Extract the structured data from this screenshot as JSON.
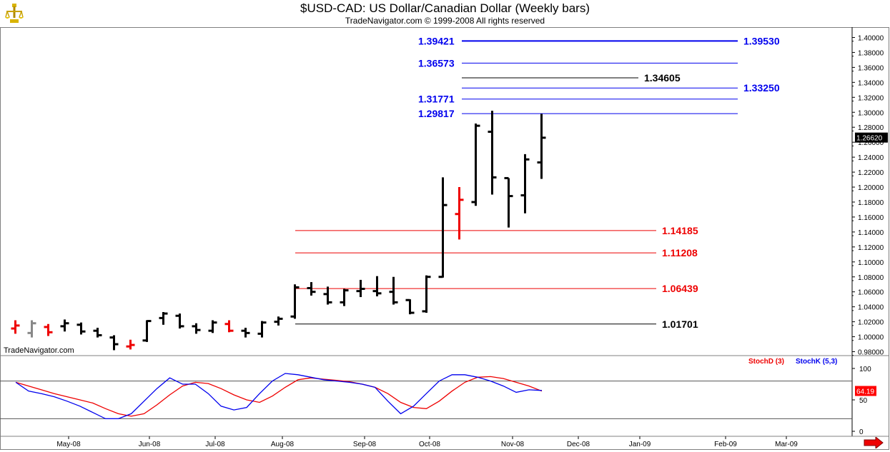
{
  "header": {
    "title": "$USD-CAD:  US Dollar/Canadian Dollar  (Weekly bars)",
    "subtitle": "TradeNavigator.com © 1999-2008 All rights reserved",
    "watermark": "TradeNavigator.com"
  },
  "icons": {
    "logo": "trophy-icon",
    "scroll": "arrow-right-icon"
  },
  "colors": {
    "up": "#000000",
    "down": "#ff0000",
    "blue": "#0000ee",
    "red": "#ee0000",
    "stochD": "#ff0000",
    "stochK": "#0000ff"
  },
  "chart_data": [
    {
      "type": "ohlc",
      "title": "$USD-CAD:  US Dollar/Canadian Dollar  (Weekly bars)",
      "ylim": [
        0.97,
        1.41
      ],
      "y_ticks": [
        "1.40000",
        "1.38000",
        "1.36000",
        "1.34000",
        "1.32000",
        "1.30000",
        "1.28000",
        "1.26000",
        "1.24000",
        "1.22000",
        "1.20000",
        "1.18000",
        "1.16000",
        "1.14000",
        "1.12000",
        "1.10000",
        "1.08000",
        "1.06000",
        "1.04000",
        "1.02000",
        "1.00000",
        "0.98000"
      ],
      "x_labels": [
        "May-08",
        "Jun-08",
        "Jul-08",
        "Aug-08",
        "Sep-08",
        "Oct-08",
        "Nov-08",
        "Dec-08",
        "Jan-09",
        "Feb-09",
        "Mar-09"
      ],
      "last_price": "1.26620",
      "bars": [
        {
          "o": 1.011,
          "h": 1.022,
          "l": 1.004,
          "c": 1.015,
          "color": "red"
        },
        {
          "o": 1.005,
          "h": 1.022,
          "l": 0.999,
          "c": 1.018,
          "color": "gray"
        },
        {
          "o": 1.013,
          "h": 1.017,
          "l": 1.001,
          "c": 1.006,
          "color": "red"
        },
        {
          "o": 1.014,
          "h": 1.023,
          "l": 1.007,
          "c": 1.018,
          "color": "black"
        },
        {
          "o": 1.016,
          "h": 1.019,
          "l": 1.003,
          "c": 1.007,
          "color": "black"
        },
        {
          "o": 1.008,
          "h": 1.012,
          "l": 0.999,
          "c": 1.002,
          "color": "black"
        },
        {
          "o": 0.999,
          "h": 1.002,
          "l": 0.982,
          "c": 0.99,
          "color": "black"
        },
        {
          "o": 0.987,
          "h": 0.996,
          "l": 0.983,
          "c": 0.989,
          "color": "red"
        },
        {
          "o": 0.995,
          "h": 1.022,
          "l": 0.993,
          "c": 1.021,
          "color": "black"
        },
        {
          "o": 1.025,
          "h": 1.033,
          "l": 1.016,
          "c": 1.031,
          "color": "black"
        },
        {
          "o": 1.028,
          "h": 1.031,
          "l": 1.011,
          "c": 1.014,
          "color": "black"
        },
        {
          "o": 1.014,
          "h": 1.018,
          "l": 1.004,
          "c": 1.009,
          "color": "black"
        },
        {
          "o": 1.008,
          "h": 1.022,
          "l": 1.005,
          "c": 1.019,
          "color": "black"
        },
        {
          "o": 1.017,
          "h": 1.022,
          "l": 1.006,
          "c": 1.008,
          "color": "red"
        },
        {
          "o": 1.008,
          "h": 1.012,
          "l": 0.999,
          "c": 1.005,
          "color": "black"
        },
        {
          "o": 1.004,
          "h": 1.021,
          "l": 0.999,
          "c": 1.019,
          "color": "black"
        },
        {
          "o": 1.02,
          "h": 1.027,
          "l": 1.015,
          "c": 1.024,
          "color": "black"
        },
        {
          "o": 1.027,
          "h": 1.07,
          "l": 1.024,
          "c": 1.066,
          "color": "black"
        },
        {
          "o": 1.065,
          "h": 1.073,
          "l": 1.055,
          "c": 1.06,
          "color": "black"
        },
        {
          "o": 1.057,
          "h": 1.067,
          "l": 1.043,
          "c": 1.046,
          "color": "black"
        },
        {
          "o": 1.046,
          "h": 1.064,
          "l": 1.041,
          "c": 1.062,
          "color": "black"
        },
        {
          "o": 1.061,
          "h": 1.076,
          "l": 1.053,
          "c": 1.064,
          "color": "black"
        },
        {
          "o": 1.061,
          "h": 1.081,
          "l": 1.054,
          "c": 1.058,
          "color": "black"
        },
        {
          "o": 1.06,
          "h": 1.08,
          "l": 1.043,
          "c": 1.046,
          "color": "black"
        },
        {
          "o": 1.049,
          "h": 1.05,
          "l": 1.03,
          "c": 1.032,
          "color": "black"
        },
        {
          "o": 1.034,
          "h": 1.082,
          "l": 1.032,
          "c": 1.08,
          "color": "black"
        },
        {
          "o": 1.08,
          "h": 1.213,
          "l": 1.079,
          "c": 1.176,
          "color": "black"
        },
        {
          "o": 1.164,
          "h": 1.2,
          "l": 1.13,
          "c": 1.183,
          "color": "red"
        },
        {
          "o": 1.18,
          "h": 1.285,
          "l": 1.175,
          "c": 1.282,
          "color": "black"
        },
        {
          "o": 1.274,
          "h": 1.302,
          "l": 1.19,
          "c": 1.213,
          "color": "black"
        },
        {
          "o": 1.212,
          "h": 1.212,
          "l": 1.146,
          "c": 1.188,
          "color": "black"
        },
        {
          "o": 1.189,
          "h": 1.244,
          "l": 1.165,
          "c": 1.237,
          "color": "black"
        },
        {
          "o": 1.233,
          "h": 1.298,
          "l": 1.211,
          "c": 1.266,
          "color": "black"
        }
      ],
      "levels": [
        {
          "label": "1.39421",
          "right_label": "1.39530",
          "value": 1.3953,
          "color": "blue",
          "label_side": "both"
        },
        {
          "label": "1.36573",
          "value": 1.3657,
          "color": "blue",
          "label_side": "left"
        },
        {
          "label": "1.34605",
          "value": 1.346,
          "color": "black",
          "label_side": "right-near"
        },
        {
          "label": "1.33250",
          "value": 1.3325,
          "color": "blue",
          "label_side": "right"
        },
        {
          "label": "1.31771",
          "value": 1.3177,
          "color": "blue",
          "label_side": "left"
        },
        {
          "label": "1.29817",
          "value": 1.2982,
          "color": "blue",
          "label_side": "left"
        },
        {
          "label": "1.14185",
          "value": 1.1419,
          "color": "red",
          "label_side": "right-near"
        },
        {
          "label": "1.11208",
          "value": 1.1121,
          "color": "red",
          "label_side": "right-near"
        },
        {
          "label": "1.06439",
          "value": 1.0644,
          "color": "red",
          "label_side": "right-near"
        },
        {
          "label": "1.01701",
          "value": 1.017,
          "color": "black",
          "label_side": "right-near"
        }
      ]
    },
    {
      "type": "line",
      "title": "",
      "ylim": [
        0,
        100
      ],
      "y_ticks": [
        "100",
        "50",
        "0"
      ],
      "reference_lines": [
        80,
        20
      ],
      "last_value": "64.19",
      "series": [
        {
          "name": "StochD (3)",
          "color": "red",
          "values": [
            78,
            72,
            66,
            60,
            55,
            50,
            45,
            36,
            28,
            24,
            28,
            42,
            58,
            72,
            78,
            76,
            68,
            58,
            50,
            46,
            56,
            70,
            82,
            85,
            83,
            81,
            79,
            75,
            70,
            60,
            46,
            38,
            36,
            48,
            64,
            78,
            86,
            87,
            84,
            78,
            72,
            64
          ]
        },
        {
          "name": "StochK (5,3)",
          "color": "blue",
          "values": [
            78,
            64,
            60,
            55,
            48,
            40,
            30,
            20,
            20,
            28,
            48,
            68,
            85,
            75,
            75,
            60,
            40,
            34,
            38,
            60,
            80,
            92,
            90,
            86,
            82,
            80,
            78,
            75,
            70,
            48,
            28,
            40,
            60,
            80,
            90,
            90,
            86,
            80,
            72,
            62,
            66,
            65
          ]
        }
      ]
    }
  ]
}
